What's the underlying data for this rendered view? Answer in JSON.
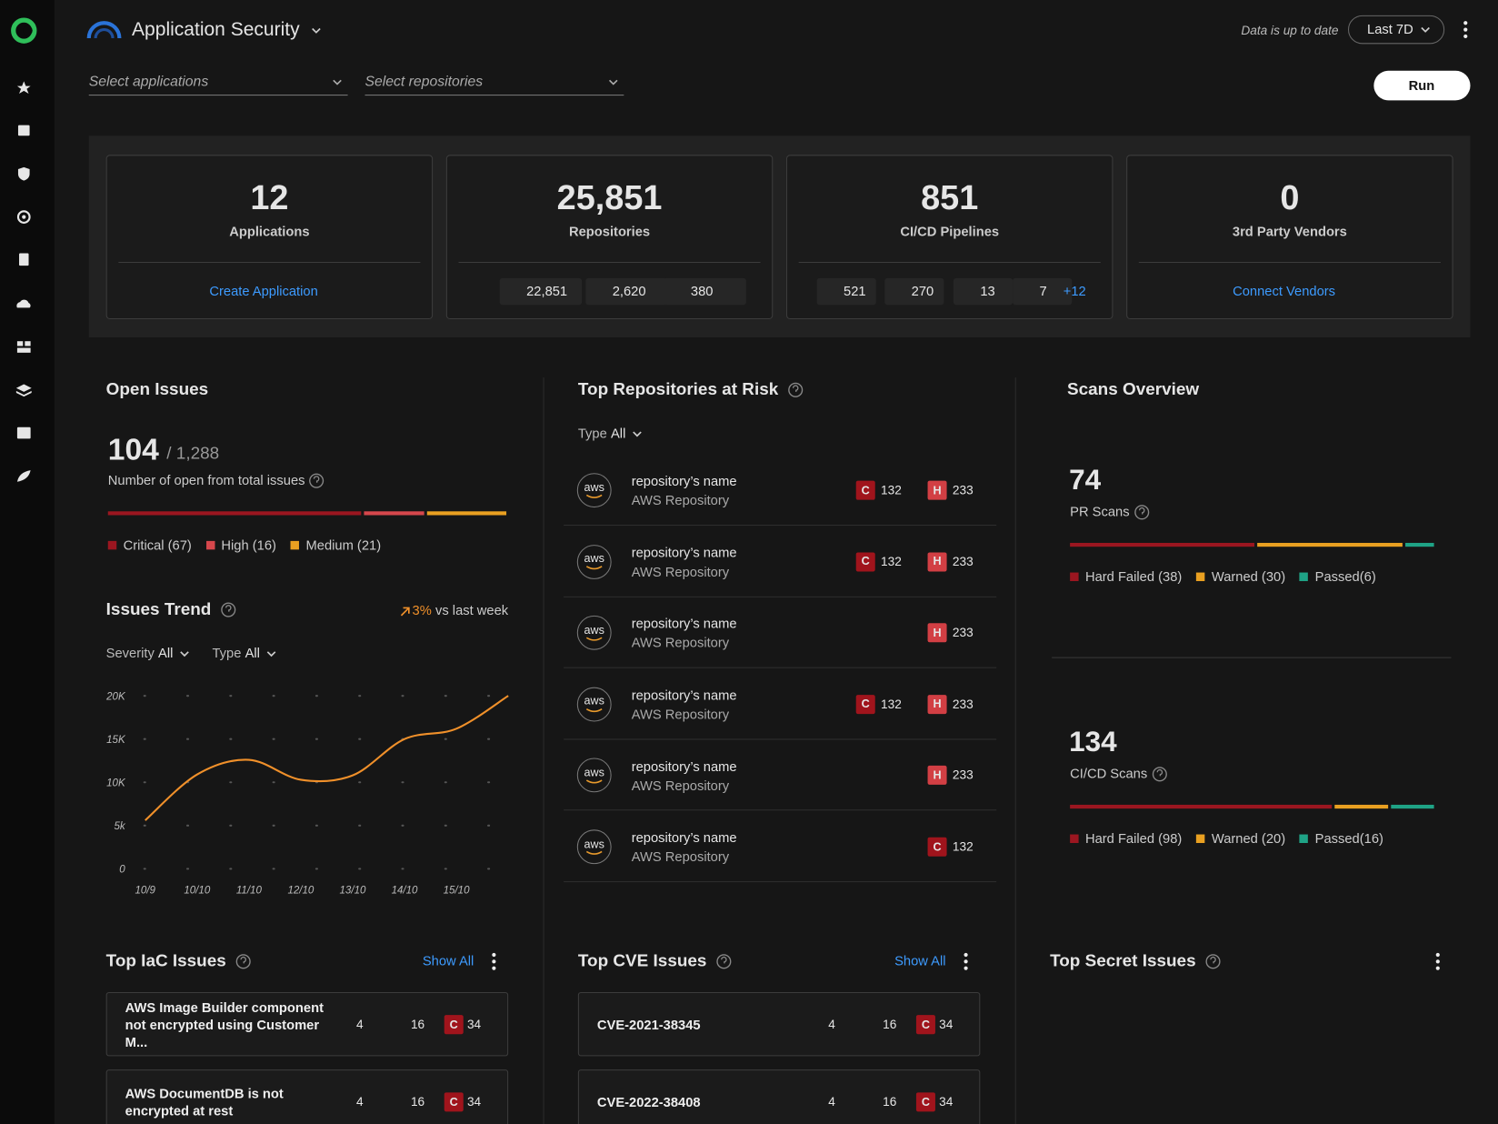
{
  "header": {
    "title": "Application Security",
    "status": "Data is up to date",
    "range": "Last 7D",
    "run": "Run"
  },
  "filters": [
    "Select applications",
    "Select repositories"
  ],
  "stats": [
    {
      "value": "12",
      "label": "Applications",
      "link": "Create Application"
    },
    {
      "value": "25,851",
      "label": "Repositories",
      "sources": [
        "22,851",
        "2,620",
        "380"
      ]
    },
    {
      "value": "851",
      "label": "CI/CD Pipelines",
      "sources": [
        "521",
        "270",
        "13",
        "7"
      ],
      "more": "+12"
    },
    {
      "value": "0",
      "label": "3rd Party Vendors",
      "link": "Connect Vendors"
    }
  ],
  "open_issues": {
    "title": "Open Issues",
    "count": "104",
    "total": "/ 1,288",
    "caption": "Number of open from total issues",
    "segments": [
      {
        "label": "Critical (67)",
        "value": 67,
        "color": "#9b1620"
      },
      {
        "label": "High (16)",
        "value": 16,
        "color": "#d6474c"
      },
      {
        "label": "Medium (21)",
        "value": 21,
        "color": "#e9a021"
      }
    ]
  },
  "issues_trend": {
    "change": "3%",
    "change_label": "vs last week",
    "filters": [
      {
        "label": "Severity",
        "value": "All"
      },
      {
        "label": "Type",
        "value": "All"
      }
    ]
  },
  "chart_data": {
    "type": "line",
    "title": "Issues Trend",
    "categories": [
      "10/9",
      "10/10",
      "11/10",
      "12/10",
      "13/10",
      "14/10",
      "15/10",
      null
    ],
    "values": [
      5600,
      10900,
      12600,
      10300,
      10800,
      15000,
      16200,
      20000
    ],
    "color": "#f0902a",
    "ylim": [
      0,
      20000
    ],
    "yticks": [
      0,
      {
        "value": 5000,
        "label": "5k"
      },
      {
        "value": 10000,
        "label": "10K"
      },
      {
        "value": 15000,
        "label": "15K"
      },
      {
        "value": 20000,
        "label": "20K"
      }
    ],
    "grid": true
  },
  "top_repositories": {
    "title": "Top Repositories at Risk",
    "filter": {
      "label": "Type",
      "value": "All"
    },
    "rows": [
      {
        "logo": "aws",
        "name": "repository’s name",
        "type": "AWS Repository",
        "badges": [
          {
            "level": "C",
            "count": "132"
          },
          {
            "level": "H",
            "count": "233"
          }
        ]
      },
      {
        "logo": "aws",
        "name": "repository’s name",
        "type": "AWS Repository",
        "badges": [
          {
            "level": "C",
            "count": "132"
          },
          {
            "level": "H",
            "count": "233"
          }
        ]
      },
      {
        "logo": "aws",
        "name": "repository’s name",
        "type": "AWS Repository",
        "badges": [
          {
            "level": "H",
            "count": "233"
          }
        ]
      },
      {
        "logo": "aws",
        "name": "repository’s name",
        "type": "AWS Repository",
        "badges": [
          {
            "level": "C",
            "count": "132"
          },
          {
            "level": "H",
            "count": "233"
          }
        ]
      },
      {
        "logo": "aws",
        "name": "repository’s name",
        "type": "AWS Repository",
        "badges": [
          {
            "level": "H",
            "count": "233"
          }
        ]
      },
      {
        "logo": "aws",
        "name": "repository’s name",
        "type": "AWS Repository",
        "badges": [
          {
            "level": "C",
            "count": "132"
          }
        ]
      }
    ]
  },
  "scans": {
    "title": "Scans Overview",
    "blocks": [
      {
        "count": "74",
        "label": "PR Scans",
        "segments": [
          {
            "label": "Hard Failed (38)",
            "value": 38,
            "color": "#9b1620"
          },
          {
            "label": "Warned (30)",
            "value": 30,
            "color": "#e9a021"
          },
          {
            "label": "Passed(6)",
            "value": 6,
            "color": "#1fa386"
          }
        ]
      },
      {
        "count": "134",
        "label": "CI/CD Scans",
        "segments": [
          {
            "label": "Hard Failed (98)",
            "value": 98,
            "color": "#9b1620"
          },
          {
            "label": "Warned (20)",
            "value": 20,
            "color": "#e9a021"
          },
          {
            "label": "Passed(16)",
            "value": 16,
            "color": "#1fa386"
          }
        ]
      }
    ]
  },
  "iac": {
    "title": "Top IaC Issues",
    "show_all": "Show All",
    "items": [
      {
        "text": "AWS Image Builder component not encrypted using Customer M...",
        "stats": [
          "4",
          "16"
        ],
        "badge": "C",
        "count": "34"
      },
      {
        "text": "AWS DocumentDB is not encrypted at rest",
        "stats": [
          "4",
          "16"
        ],
        "badge": "C",
        "count": "34"
      }
    ]
  },
  "cve": {
    "title": "Top CVE Issues",
    "show_all": "Show All",
    "items": [
      {
        "text": "CVE-2021-38345",
        "stats": [
          "4",
          "16"
        ],
        "badge": "C",
        "count": "34"
      },
      {
        "text": "CVE-2022-38408",
        "stats": [
          "4",
          "16"
        ],
        "badge": "C",
        "count": "34"
      }
    ]
  },
  "secrets": {
    "title": "Top Secret Issues"
  }
}
